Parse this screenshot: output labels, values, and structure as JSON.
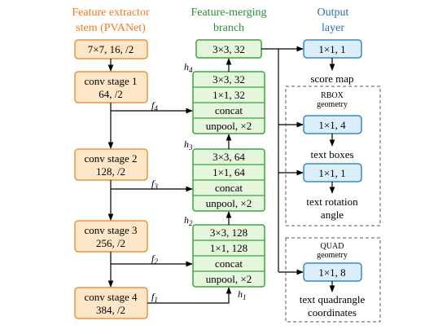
{
  "headers": {
    "feature_extractor": [
      "Feature extractor",
      "stem (PVANet)"
    ],
    "merging": [
      "Feature-merging",
      "branch"
    ],
    "output": [
      "Output",
      "layer"
    ]
  },
  "colors": {
    "orange_text": "#f07a20",
    "green_text": "#2e8b3a",
    "blue_text": "#2b6fb6",
    "orange_fill": "#fde6c8",
    "orange_stroke": "#e8963a",
    "green_fill": "#e6f6dc",
    "green_stroke": "#3aa33e",
    "blue_fill": "#dbeefb",
    "blue_stroke": "#3a87c4"
  },
  "stem": [
    {
      "lines": [
        "7×7, 16, /2"
      ]
    },
    {
      "lines": [
        "conv stage 1",
        "64, /2"
      ]
    },
    {
      "lines": [
        "conv stage 2",
        "128, /2"
      ]
    },
    {
      "lines": [
        "conv stage 3",
        "256, /2"
      ]
    },
    {
      "lines": [
        "conv stage 4",
        "384, /2"
      ]
    }
  ],
  "merge_top": "3×3, 32",
  "merge_groups": [
    {
      "h": "h",
      "h_sub": "4",
      "rows": [
        "3×3, 32",
        "1×1, 32",
        "concat",
        "unpool, ×2"
      ]
    },
    {
      "h": "h",
      "h_sub": "3",
      "rows": [
        "3×3, 64",
        "1×1, 64",
        "concat",
        "unpool, ×2"
      ]
    },
    {
      "h": "h",
      "h_sub": "2",
      "rows": [
        "3×3, 128",
        "1×1, 128",
        "concat",
        "unpool, ×2"
      ]
    }
  ],
  "h1": {
    "h": "h",
    "sub": "1"
  },
  "f_labels": [
    {
      "f": "f",
      "sub": "4"
    },
    {
      "f": "f",
      "sub": "3"
    },
    {
      "f": "f",
      "sub": "2"
    },
    {
      "f": "f",
      "sub": "1"
    }
  ],
  "outputs": {
    "score": {
      "box": "1×1, 1",
      "label": "score map"
    },
    "rbox": {
      "title": [
        "RBOX",
        "geometry"
      ],
      "boxes": [
        {
          "box": "1×1, 4",
          "label": [
            "text boxes"
          ]
        },
        {
          "box": "1×1, 1",
          "label": [
            "text rotation",
            "angle"
          ]
        }
      ]
    },
    "quad": {
      "title": [
        "QUAD",
        "geometry"
      ],
      "box": "1×1, 8",
      "label": [
        "text quadrangle",
        "coordinates"
      ]
    }
  }
}
